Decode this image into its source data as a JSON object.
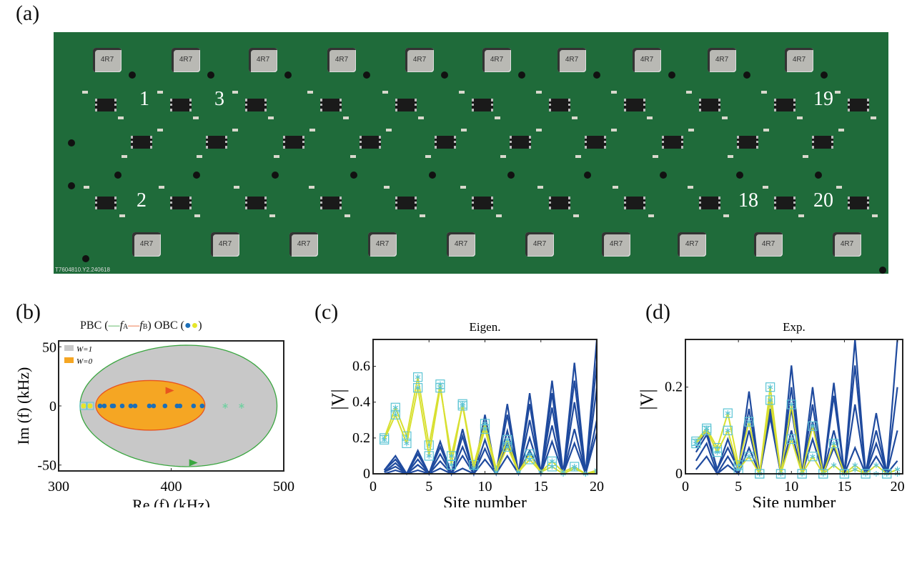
{
  "panels": {
    "a": "(a)",
    "b": "(b)",
    "c": "(c)",
    "d": "(d)"
  },
  "board": {
    "inductor_label": "4R7",
    "site_labels": [
      "1",
      "3",
      "19",
      "2",
      "18",
      "20"
    ],
    "silkscreen": "T7604810.Y2.240618"
  },
  "chart_data": [
    {
      "type": "scatter",
      "panel": "b",
      "legend_header": {
        "pbc": "PBC (",
        "fa": "f",
        "fa_sub": "A",
        "fb": "f",
        "fb_sub": "B",
        "close": ")",
        "obc": "OBC (",
        "obc_close": ")"
      },
      "legend": [
        {
          "label": "W=1",
          "color": "#c8c8c8"
        },
        {
          "label": "W=0",
          "color": "#f5a623"
        }
      ],
      "xlabel": "Re (f) (kHz)",
      "ylabel": "Im (f) (kHz)",
      "xlim": [
        300,
        500
      ],
      "ylim": [
        -55,
        55
      ],
      "xticks": [
        300,
        400,
        500
      ],
      "yticks": [
        -50,
        0,
        50
      ],
      "pbc_A": {
        "color": "#3aa640",
        "re_range": [
          313,
          494
        ],
        "im_range": [
          -50,
          52
        ]
      },
      "pbc_B": {
        "color": "#e8541e",
        "re_range": [
          333,
          430
        ],
        "im_range": [
          -10,
          11
        ]
      },
      "obc_blue": {
        "color": "#1c6fb8",
        "re": [
          336.8,
          340.6,
          347.6,
          348.9,
          356.5,
          364.1,
          367.9,
          380.6,
          384.4,
          394.5,
          405.3,
          407.8,
          419.9,
          427.5
        ],
        "im": 0
      },
      "obc_yellow": {
        "color": "#e6e62a",
        "re": [
          322.2,
          327.9
        ],
        "im": 0
      },
      "stars": {
        "color": "#6fd0a0",
        "re": [
          448,
          462.5
        ],
        "im": 0
      }
    },
    {
      "type": "line",
      "panel": "c",
      "title": "Eigen.",
      "xlabel": "Site number",
      "ylabel": "|V|",
      "xlim": [
        0,
        20
      ],
      "ylim": [
        0,
        0.75
      ],
      "xticks": [
        0,
        5,
        10,
        15,
        20
      ],
      "yticks": [
        0,
        0.2,
        0.4,
        0.6
      ],
      "x": [
        1,
        2,
        3,
        4,
        5,
        6,
        7,
        8,
        9,
        10,
        11,
        12,
        13,
        14,
        15,
        16,
        17,
        18,
        19,
        20
      ],
      "blue_series": [
        [
          0.02,
          0.1,
          0.0,
          0.13,
          0.0,
          0.18,
          0.0,
          0.25,
          0.0,
          0.33,
          0.0,
          0.39,
          0.0,
          0.45,
          0.0,
          0.52,
          0.0,
          0.62,
          0.0,
          0.75
        ],
        [
          0.02,
          0.08,
          0.0,
          0.11,
          0.0,
          0.15,
          0.0,
          0.21,
          0.0,
          0.28,
          0.0,
          0.33,
          0.0,
          0.39,
          0.0,
          0.45,
          0.0,
          0.52,
          0.0,
          0.62
        ],
        [
          0.01,
          0.06,
          0.0,
          0.08,
          0.0,
          0.11,
          0.0,
          0.15,
          0.0,
          0.19,
          0.0,
          0.24,
          0.0,
          0.3,
          0.0,
          0.37,
          0.0,
          0.4,
          0.0,
          0.48
        ],
        [
          0.01,
          0.04,
          0.0,
          0.05,
          0.0,
          0.07,
          0.0,
          0.1,
          0.0,
          0.14,
          0.0,
          0.17,
          0.0,
          0.2,
          0.0,
          0.27,
          0.0,
          0.25,
          0.0,
          0.3
        ],
        [
          0.0,
          0.02,
          0.0,
          0.02,
          0.0,
          0.03,
          0.0,
          0.03,
          0.0,
          0.08,
          0.0,
          0.1,
          0.0,
          0.13,
          0.0,
          0.18,
          0.0,
          0.17,
          0.0,
          0.23
        ]
      ],
      "yellow_series": [
        [
          0.2,
          0.37,
          0.21,
          0.54,
          0.16,
          0.5,
          0.05,
          0.39,
          0.05,
          0.28,
          0.03,
          0.19,
          0.01,
          0.11,
          0.01,
          0.07,
          0.01,
          0.04,
          0.0,
          0.02
        ],
        [
          0.19,
          0.33,
          0.17,
          0.48,
          0.1,
          0.48,
          0.1,
          0.38,
          0.03,
          0.25,
          0.01,
          0.15,
          0.01,
          0.08,
          0.01,
          0.04,
          0.0,
          0.03,
          0.0,
          0.01
        ]
      ],
      "colors": {
        "blue": "#1f4a9e",
        "yellow": "#d8e030",
        "marker": "#5bc4d4"
      }
    },
    {
      "type": "line",
      "panel": "d",
      "title": "Exp.",
      "xlabel": "Site number",
      "ylabel": "|V|",
      "xlim": [
        0,
        20.5
      ],
      "ylim": [
        0,
        0.31
      ],
      "xticks": [
        0,
        5,
        10,
        15,
        20
      ],
      "yticks": [
        0,
        0.2
      ],
      "x": [
        1,
        2,
        3,
        4,
        5,
        6,
        7,
        8,
        9,
        10,
        11,
        12,
        13,
        14,
        15,
        16,
        17,
        18,
        19,
        20
      ],
      "blue_series": [
        [
          0.06,
          0.1,
          0.01,
          0.08,
          0.01,
          0.19,
          0.0,
          0.17,
          0.0,
          0.25,
          0.0,
          0.2,
          0.0,
          0.21,
          0.0,
          0.31,
          0.0,
          0.14,
          0.0,
          0.31
        ],
        [
          0.05,
          0.09,
          0.01,
          0.06,
          0.01,
          0.15,
          0.0,
          0.15,
          0.0,
          0.2,
          0.0,
          0.16,
          0.0,
          0.18,
          0.0,
          0.25,
          0.0,
          0.1,
          0.0,
          0.2
        ],
        [
          0.03,
          0.07,
          0.0,
          0.04,
          0.0,
          0.1,
          0.0,
          0.14,
          0.0,
          0.15,
          0.0,
          0.12,
          0.0,
          0.1,
          0.0,
          0.16,
          0.0,
          0.07,
          0.0,
          0.1
        ],
        [
          0.01,
          0.04,
          0.0,
          0.02,
          0.0,
          0.06,
          0.0,
          0.13,
          0.0,
          0.1,
          0.0,
          0.08,
          0.0,
          0.06,
          0.0,
          0.06,
          0.0,
          0.04,
          0.0,
          0.03
        ]
      ],
      "yellow_series": [
        [
          0.075,
          0.105,
          0.06,
          0.14,
          0.02,
          0.12,
          0.0,
          0.2,
          0.0,
          0.16,
          0.0,
          0.11,
          0.0,
          0.07,
          0.0,
          0.02,
          0.0,
          0.02,
          0.0,
          0.01
        ],
        [
          0.07,
          0.1,
          0.05,
          0.1,
          0.01,
          0.04,
          0.0,
          0.17,
          0.0,
          0.08,
          0.0,
          0.04,
          0.0,
          0.02,
          0.0,
          0.01,
          0.0,
          0.0,
          0.0,
          0.0
        ]
      ],
      "colors": {
        "blue": "#1f4a9e",
        "yellow": "#d8e030",
        "marker": "#5bc4d4"
      }
    }
  ]
}
